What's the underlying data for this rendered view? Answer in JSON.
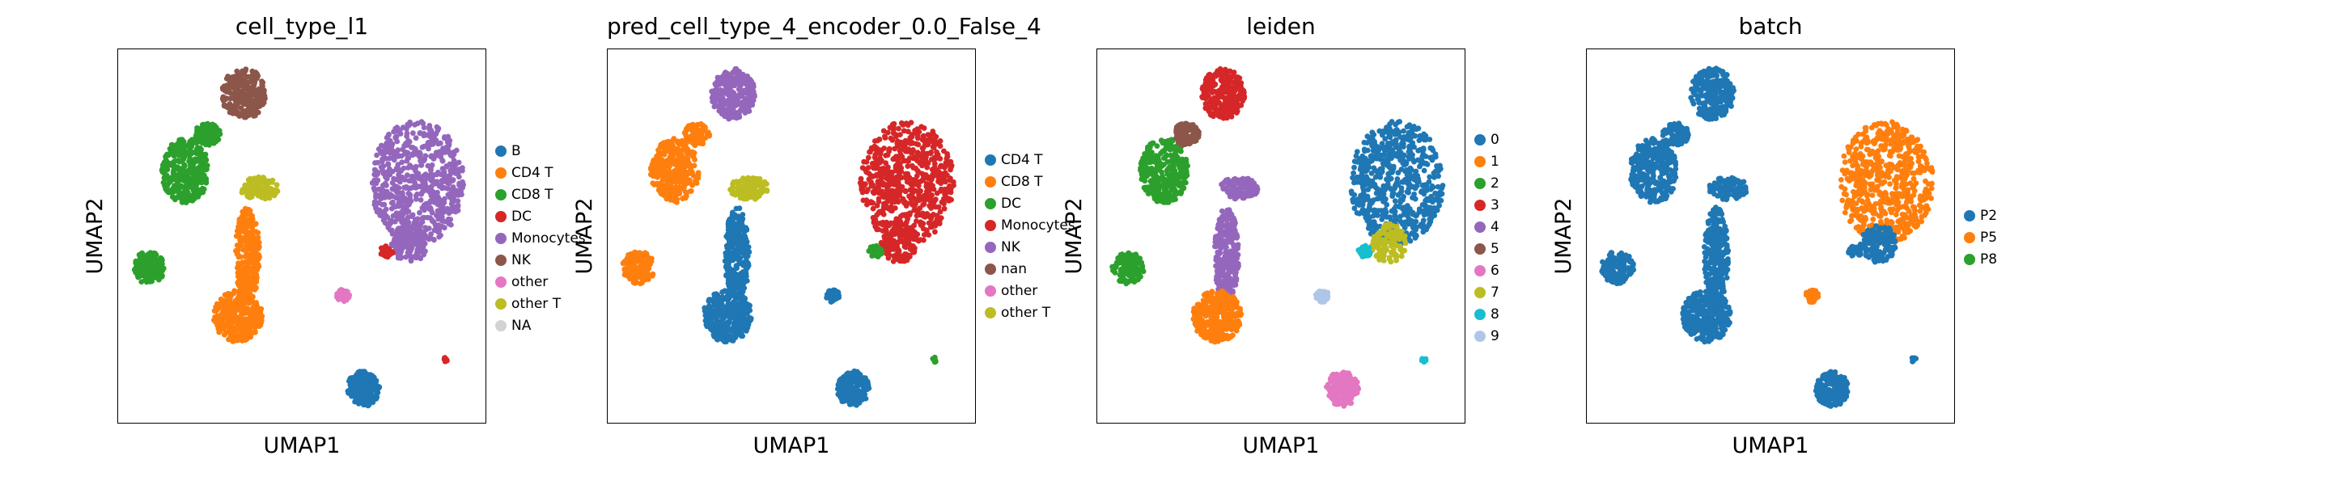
{
  "chart_data": [
    {
      "type": "scatter",
      "title": "cell_type_l1",
      "xlabel": "UMAP1",
      "ylabel": "UMAP2",
      "grid": false,
      "legend_position": "right",
      "legend": [
        {
          "label": "B",
          "color": "#1f77b4"
        },
        {
          "label": "CD4 T",
          "color": "#ff7f0e"
        },
        {
          "label": "CD8 T",
          "color": "#2ca02c"
        },
        {
          "label": "DC",
          "color": "#d62728"
        },
        {
          "label": "Monocytes",
          "color": "#9467bd"
        },
        {
          "label": "NK",
          "color": "#8c564b"
        },
        {
          "label": "other",
          "color": "#e377c2"
        },
        {
          "label": "other T",
          "color": "#bcbd22"
        },
        {
          "label": "NA",
          "color": "#d3d3d3"
        }
      ],
      "clusters": [
        {
          "label": "NK",
          "color": "#8c564b"
        },
        {
          "label": "CD8 T",
          "color": "#2ca02c"
        },
        {
          "label": "CD8 T",
          "color": "#2ca02c"
        },
        {
          "label": "other T",
          "color": "#bcbd22"
        },
        {
          "label": "CD4 T",
          "color": "#ff7f0e"
        },
        {
          "label": "CD4 T",
          "color": "#ff7f0e"
        },
        {
          "label": "CD8 T",
          "color": "#2ca02c"
        },
        {
          "label": "Monocytes",
          "color": "#9467bd"
        },
        {
          "label": "Monocytes",
          "color": "#9467bd"
        },
        {
          "label": "DC",
          "color": "#d62728"
        },
        {
          "label": "other",
          "color": "#e377c2"
        },
        {
          "label": "B",
          "color": "#1f77b4"
        },
        {
          "label": "DC",
          "color": "#d62728"
        }
      ]
    },
    {
      "type": "scatter",
      "title": "pred_cell_type_4_encoder_0.0_False_4",
      "xlabel": "UMAP1",
      "ylabel": "UMAP2",
      "grid": false,
      "legend_position": "right",
      "legend": [
        {
          "label": "CD4 T",
          "color": "#1f77b4"
        },
        {
          "label": "CD8 T",
          "color": "#ff7f0e"
        },
        {
          "label": "DC",
          "color": "#2ca02c"
        },
        {
          "label": "Monocytes",
          "color": "#d62728"
        },
        {
          "label": "NK",
          "color": "#9467bd"
        },
        {
          "label": "nan",
          "color": "#8c564b"
        },
        {
          "label": "other",
          "color": "#e377c2"
        },
        {
          "label": "other T",
          "color": "#bcbd22"
        }
      ],
      "clusters": [
        {
          "label": "NK",
          "color": "#9467bd"
        },
        {
          "label": "CD8 T",
          "color": "#ff7f0e"
        },
        {
          "label": "CD8 T",
          "color": "#ff7f0e"
        },
        {
          "label": "other T",
          "color": "#bcbd22"
        },
        {
          "label": "CD4 T",
          "color": "#1f77b4"
        },
        {
          "label": "CD4 T",
          "color": "#1f77b4"
        },
        {
          "label": "CD8 T",
          "color": "#ff7f0e"
        },
        {
          "label": "Monocytes",
          "color": "#d62728"
        },
        {
          "label": "Monocytes",
          "color": "#d62728"
        },
        {
          "label": "DC",
          "color": "#2ca02c"
        },
        {
          "label": "CD4 T",
          "color": "#1f77b4"
        },
        {
          "label": "CD4 T",
          "color": "#1f77b4"
        },
        {
          "label": "DC",
          "color": "#2ca02c"
        }
      ]
    },
    {
      "type": "scatter",
      "title": "leiden",
      "xlabel": "UMAP1",
      "ylabel": "UMAP2",
      "grid": false,
      "legend_position": "right",
      "legend": [
        {
          "label": "0",
          "color": "#1f77b4"
        },
        {
          "label": "1",
          "color": "#ff7f0e"
        },
        {
          "label": "2",
          "color": "#2ca02c"
        },
        {
          "label": "3",
          "color": "#d62728"
        },
        {
          "label": "4",
          "color": "#9467bd"
        },
        {
          "label": "5",
          "color": "#8c564b"
        },
        {
          "label": "6",
          "color": "#e377c2"
        },
        {
          "label": "7",
          "color": "#bcbd22"
        },
        {
          "label": "8",
          "color": "#17becf"
        },
        {
          "label": "9",
          "color": "#aec7e8"
        }
      ],
      "clusters": [
        {
          "label": "3",
          "color": "#d62728"
        },
        {
          "label": "2",
          "color": "#2ca02c"
        },
        {
          "label": "2",
          "color": "#2ca02c"
        },
        {
          "label": "4",
          "color": "#9467bd"
        },
        {
          "label": "4",
          "color": "#9467bd"
        },
        {
          "label": "1",
          "color": "#ff7f0e"
        },
        {
          "label": "5",
          "color": "#8c564b"
        },
        {
          "label": "0",
          "color": "#1f77b4"
        },
        {
          "label": "7",
          "color": "#bcbd22"
        },
        {
          "label": "8",
          "color": "#17becf"
        },
        {
          "label": "9",
          "color": "#aec7e8"
        },
        {
          "label": "6",
          "color": "#e377c2"
        },
        {
          "label": "8",
          "color": "#17becf"
        }
      ]
    },
    {
      "type": "scatter",
      "title": "batch",
      "xlabel": "UMAP1",
      "ylabel": "UMAP2",
      "grid": false,
      "legend_position": "right",
      "legend": [
        {
          "label": "P2",
          "color": "#1f77b4"
        },
        {
          "label": "P5",
          "color": "#ff7f0e"
        },
        {
          "label": "P8",
          "color": "#2ca02c"
        }
      ],
      "clusters": [
        {
          "label": "P2",
          "color": "#1f77b4"
        },
        {
          "label": "P2",
          "color": "#1f77b4"
        },
        {
          "label": "P2",
          "color": "#1f77b4"
        },
        {
          "label": "P2",
          "color": "#1f77b4"
        },
        {
          "label": "P2",
          "color": "#1f77b4"
        },
        {
          "label": "P2",
          "color": "#1f77b4"
        },
        {
          "label": "P2",
          "color": "#1f77b4"
        },
        {
          "label": "P5",
          "color": "#ff7f0e"
        },
        {
          "label": "P2",
          "color": "#1f77b4"
        },
        {
          "label": "P2",
          "color": "#1f77b4"
        },
        {
          "label": "P5",
          "color": "#ff7f0e"
        },
        {
          "label": "P2",
          "color": "#1f77b4"
        },
        {
          "label": "P2",
          "color": "#1f77b4"
        }
      ]
    }
  ]
}
